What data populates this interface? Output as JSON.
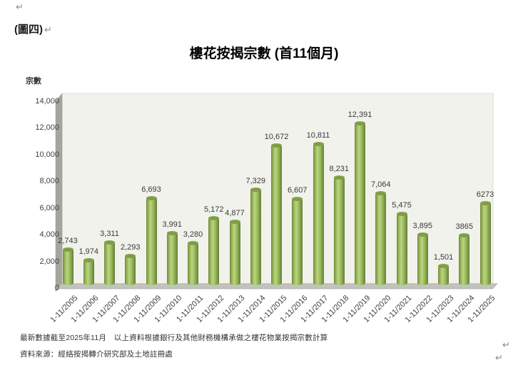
{
  "page": {
    "return_mark": "↵",
    "figure_label": "(圖四)",
    "footnote_line1": "最新數據截至2025年11月　以上資料根據銀行及其他財務機構承做之樓花物業按揭宗數計算",
    "footnote_line2": "資料來源：經絡按揭轉介研究部及土地註冊處"
  },
  "chart_data": {
    "type": "bar",
    "title": "樓花按揭宗數 (首11個月)",
    "ylabel": "宗數",
    "xlabel": "",
    "ylim": [
      0,
      14000
    ],
    "ytick_step": 2000,
    "ytick_labels": [
      "0",
      "2,000",
      "4,000",
      "6,000",
      "8,000",
      "10,000",
      "12,000",
      "14,000"
    ],
    "grid": false,
    "legend": "none",
    "style": "3d-cylinder",
    "bar_color": "#9bbb59",
    "wall_color": "#f1f2ec",
    "floor_color": "#c2c4bb",
    "categories": [
      "1-11/2005",
      "1-11/2006",
      "1-11/2007",
      "1-11/2008",
      "1-11/2009",
      "1-11/2010",
      "1-11/2011",
      "1-11/2012",
      "1-11/2013",
      "1-11/2014",
      "1-11/2015",
      "1-11/2016",
      "1-11/2017",
      "1-11/2018",
      "1-11/2019",
      "1-11/2020",
      "1-11/2021",
      "1-11/2022",
      "1-11/2023",
      "1-11/2024",
      "1-11/2025"
    ],
    "values": [
      2743,
      1974,
      3311,
      2293,
      6693,
      3991,
      3280,
      5172,
      4877,
      7329,
      10672,
      6607,
      10811,
      8231,
      12391,
      7064,
      5475,
      3895,
      1501,
      3865,
      6273
    ],
    "value_labels": [
      "2,743",
      "1,974",
      "3,311",
      "2,293",
      "6,693",
      "3,991",
      "3,280",
      "5,172",
      "4,877",
      "7,329",
      "10,672",
      "6,607",
      "10,811",
      "8,231",
      "12,391",
      "7,064",
      "5,475",
      "3,895",
      "1,501",
      "3865",
      "6273"
    ]
  }
}
